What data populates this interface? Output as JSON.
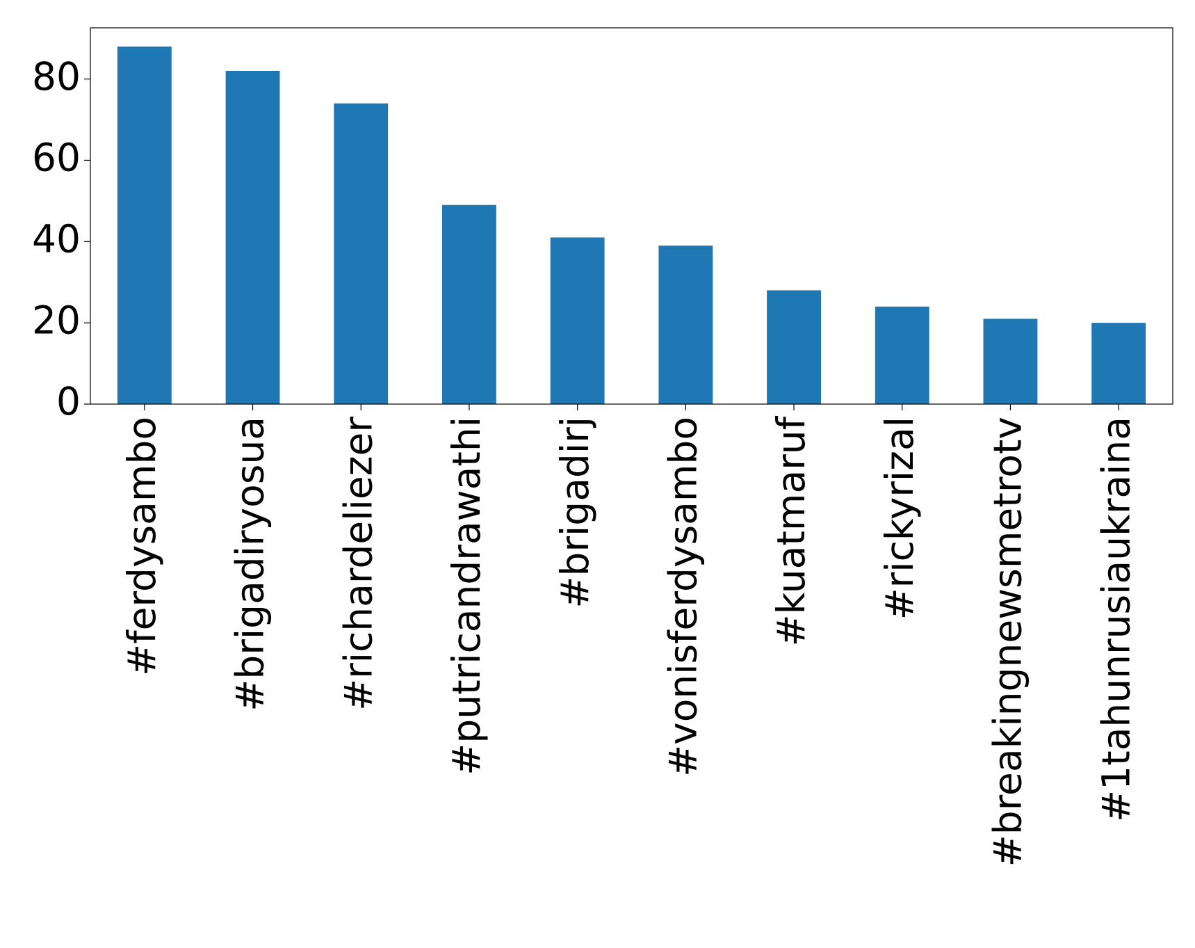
{
  "chart_data": {
    "type": "bar",
    "categories": [
      "#ferdysambo",
      "#brigadiryosua",
      "#richardeliezer",
      "#putricandrawathi",
      "#brigadirj",
      "#vonisferdysambo",
      "#kuatmaruf",
      "#rickyrizal",
      "#breakingnewsmetrotv",
      "#1tahunrusiaukraina"
    ],
    "values": [
      88,
      82,
      74,
      49,
      41,
      39,
      28,
      24,
      21,
      20
    ],
    "color": "#1f77b4",
    "ylim": [
      0,
      92.6
    ],
    "yticks": [
      0,
      20,
      40,
      60,
      80
    ],
    "grid": false
  }
}
